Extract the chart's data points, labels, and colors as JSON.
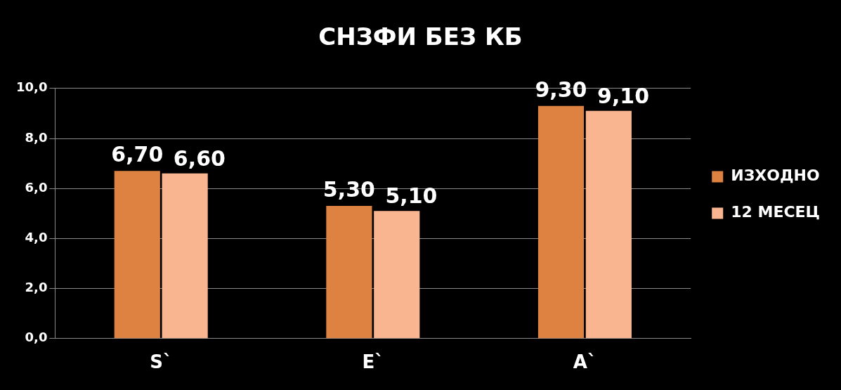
{
  "chart_data": {
    "type": "bar",
    "title": "СНЗФИ БЕЗ КБ",
    "categories": [
      "S`",
      "E`",
      "A`"
    ],
    "series": [
      {
        "name": "ИЗХОДНО",
        "color": "#dd8240",
        "values": [
          6.7,
          5.3,
          9.3
        ],
        "value_labels": [
          "6,70",
          "5,30",
          "9,30"
        ]
      },
      {
        "name": "12 МЕСЕЦ",
        "color": "#f8b590",
        "values": [
          6.6,
          5.1,
          9.1
        ],
        "value_labels": [
          "6,60",
          "5,10",
          "9,10"
        ]
      }
    ],
    "ylim": [
      0,
      10
    ],
    "yticks": [
      {
        "value": 0,
        "label": "0,0"
      },
      {
        "value": 2,
        "label": "2,0"
      },
      {
        "value": 4,
        "label": "4,0"
      },
      {
        "value": 6,
        "label": "6,0"
      },
      {
        "value": 8,
        "label": "8,0"
      },
      {
        "value": 10,
        "label": "10,0"
      }
    ],
    "grid": "y",
    "legend": "right"
  }
}
